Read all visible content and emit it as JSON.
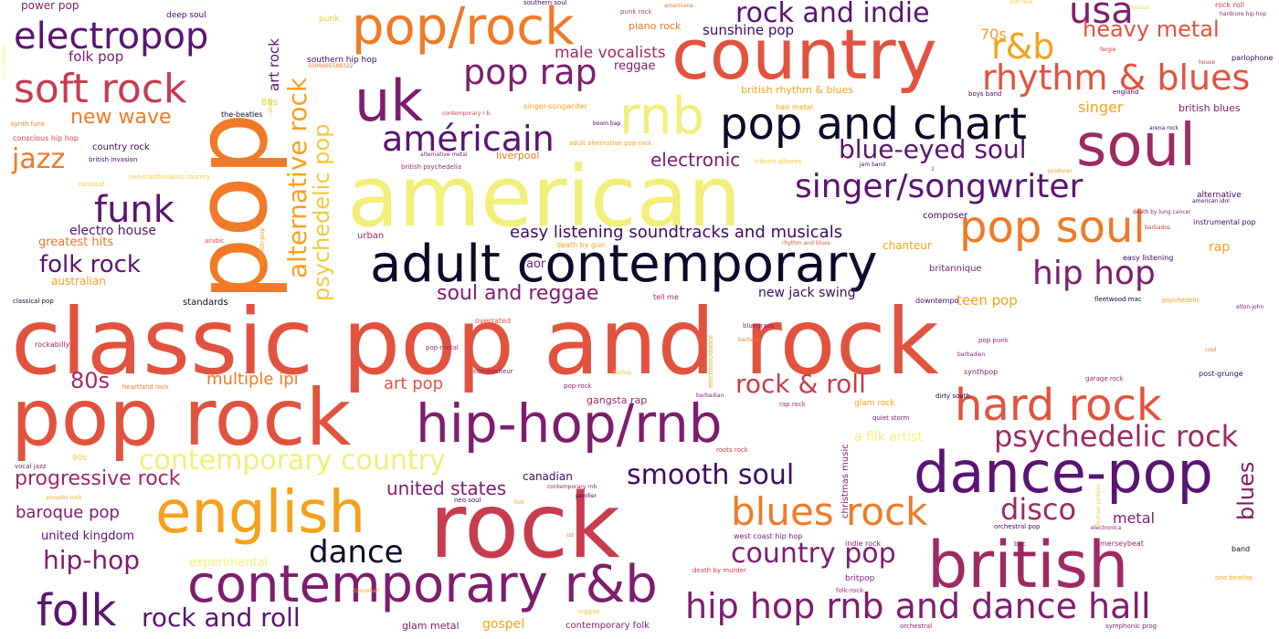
{
  "words": {
    "classic_pop_and_rock": "classic pop and rock",
    "american": "american",
    "pop": "pop",
    "pop_rock": "pop rock",
    "rock": "rock",
    "country": "country",
    "adult_contemporary": "adult contemporary",
    "british": "british",
    "hip_hop_rnb": "hip-hop/rnb",
    "contemporary_rnb": "contemporary r&b",
    "dance_pop": "dance-pop",
    "english": "english",
    "pop_slash_rock": "pop/rock",
    "uk": "uk",
    "rnb": "rnb",
    "pop_and_chart": "pop and chart",
    "soul": "soul",
    "pop_soul": "pop soul",
    "hard_rock": "hard rock",
    "blues_rock": "blues rock",
    "hip_hop_rnb_dance_hall": "hip hop rnb and dance hall",
    "electropop": "electropop",
    "soft_rock": "soft rock",
    "folk": "folk",
    "americain": "américain",
    "singer_songwriter": "singer/songwriter",
    "rhythm_and_blues": "rhythm & blues",
    "rock_and_indie": "rock and indie",
    "usa": "usa",
    "r_and_b": "r&b",
    "heavy_metal": "heavy metal",
    "pop_rap": "pop rap",
    "blue_eyed_soul": "blue-eyed soul",
    "psychedelic_rock": "psychedelic rock",
    "hip_hop": "hip hop",
    "smooth_soul": "smooth soul",
    "contemporary_country": "contemporary country",
    "country_pop": "country pop",
    "funk": "funk",
    "jazz": "jazz",
    "folk_rock": "folk rock",
    "alternative_rock": "alternative rock",
    "psychedelic_pop": "psychedelic pop",
    "dance": "dance",
    "disco": "disco",
    "rock_and_roll_amp": "rock & roll",
    "rock_and_roll": "rock and roll",
    "hip_hop_dash": "hip-hop",
    "progressive_rock": "progressive rock",
    "soul_and_reggae": "soul and reggae",
    "eighties": "80s",
    "blues": "blues",
    "new_wave": "new wave",
    "easy_listening_soundtracks": "easy listening soundtracks and musicals",
    "electronic": "electronic",
    "united_states": "united states",
    "baroque_pop": "baroque pop",
    "multiple_ipi": "multiple ipi",
    "art_pop": "art pop",
    "metal": "metal",
    "male_vocalists": "male vocalists",
    "folk_pop": "folk pop",
    "electro_house": "electro house",
    "greatest_hits": "greatest hits",
    "art_rock": "art rock",
    "sunshine_pop": "sunshine pop",
    "seventies": "70s",
    "singer": "singer",
    "rap": "rap",
    "teen_pop": "teen pop",
    "new_jack_swing": "new jack swing",
    "gospel": "gospel",
    "united_kingdom": "united kingdom",
    "power_pop": "power pop",
    "deep_soul": "deep soul",
    "reggae": "reggae",
    "piano_rock": "piano rock",
    "liverpool": "liverpool",
    "aor": "aor",
    "british_rhythm_and_blues": "british rhythm & blues",
    "chanteur": "chanteur",
    "a_filk_artist": "a filk artist",
    "gangsta_rap": "gangsta rap",
    "canadian": "canadian",
    "experimental": "experimental",
    "glam_metal": "glam metal",
    "contemporary_folk": "contemporary folk",
    "australian": "australian",
    "standards": "standards",
    "country_rock": "country rock",
    "christmas_music": "christmas music",
    "british_blues": "british blues",
    "britannique": "britannique",
    "composer": "composer",
    "easy_listening": "easy listening",
    "instrumental_pop": "instrumental pop",
    "alternative": "alternative",
    "the_beatles": "the-beatles",
    "conscious_hip_hop": "conscious hip hop",
    "british_invasion": "british invasion",
    "synth_funk": "synth funk",
    "neo_traditionalist_country": "neo-traditionalist country",
    "classical": "classical",
    "southern_hip_hop": "southern hip hop",
    "urban": "urban",
    "arabic": "arabic",
    "classical_pop": "classical pop",
    "rockabilly": "rockabilly",
    "heartland_rock": "heartland rock",
    "vocal_jazz": "vocal jazz",
    "nineties": "90s",
    "acoustic_rock": "acoustic rock",
    "neo_soul": "neo soul",
    "live": "live",
    "tell_me": "tell me",
    "overrated": "overrated",
    "pop_metal": "pop-metal",
    "compositeur": "compositeur",
    "pop_rock_dash": "pop-rock",
    "west_coast_hip_hop": "west coast hip hop",
    "indie_rock": "indie rock",
    "britpop": "britpop",
    "folk_rock_dash": "folk-rock",
    "death_by_murder": "death by murder",
    "death_by_gun": "death by gun",
    "bluegrass": "bluegrass",
    "barbade": "barbade",
    "rap_rock": "rap rock",
    "glam_rock": "glam rock",
    "barbadian": "barbadian",
    "roots_rock": "roots rock",
    "quiet_storm": "quiet storm",
    "dirty_south": "dirty south",
    "bbc": "bbc",
    "merseybeat": "merseybeat",
    "orchestral_pop": "orchestral pop",
    "electronica": "electronica",
    "band": "band",
    "one_beatles": "one beatles",
    "orchestral": "orchestral",
    "symphonic_prog": "symphonic prog",
    "downtempo": "downtempo",
    "fleetwood_mac": "fleetwood mac",
    "psychedelic": "psychedelic",
    "elton_john": "elton-john",
    "pop_punk": "pop punk",
    "barbadien": "barbadien",
    "synthpop": "synthpop",
    "garage_rock": "garage rock",
    "post_grunge": "post-grunge",
    "cool": "cool",
    "arena_rock": "arena rock",
    "jam_band": "jam band",
    "producer": "producer",
    "boys_band": "boys band",
    "england": "england",
    "fergie": "fergie",
    "house": "house",
    "parlophone": "parlophone",
    "hardcore_hip_hop": "hardcore hip hop",
    "lyricist": "lyricist",
    "rock_roll": "rock roll",
    "american_idol": "american idol",
    "death_by_lung_cancer": "death by lung cancer",
    "barbados": "barbados",
    "rhythm_and_blues_small": "rhythm and blues",
    "hair_metal": "hair metal",
    "tribute_albums": "tribute albums",
    "british_psychedelia": "british psychedelia",
    "adult_alternative_pop_rock": "adult alternative pop rock",
    "contemporary_r_b": "contemporary r b",
    "alternative_metal": "alternative metal",
    "singer_songwriter_dash": "singer-songwriter",
    "boom_bap": "boom bap",
    "punk_rock": "punk rock",
    "americana": "americana",
    "southern_soul": "southern soul",
    "punk": "punk",
    "soft_rock_small": "soft rock",
    "eighties_small": "80s",
    "us": "us",
    "parolier": "parolier",
    "contemporary_rnb_small": "contemporary rnb",
    "dancehall": "dancehall",
    "reggae_small": "reggae",
    "hiphop": "hiphop",
    "sophisti_pop": "sophisti-pop",
    "electronic_dance": "electronic/dance",
    "michael_jackson": "michael jackson",
    "catalog_number": "5099995588322",
    "rehab": "rehab",
    "mainstream": "mainstream"
  },
  "palette": {
    "near_black": "#0d0a29",
    "deep_purple": "#3e0a63",
    "purple": "#5a1472",
    "magenta": "#7e1d6e",
    "crimson": "#9e2a63",
    "red": "#c73d4e",
    "red_orange": "#e2533f",
    "orange": "#f07a27",
    "orange_yellow": "#f7a11b",
    "yellow": "#f1c93e",
    "pale_yellow": "#f2ef7a"
  }
}
